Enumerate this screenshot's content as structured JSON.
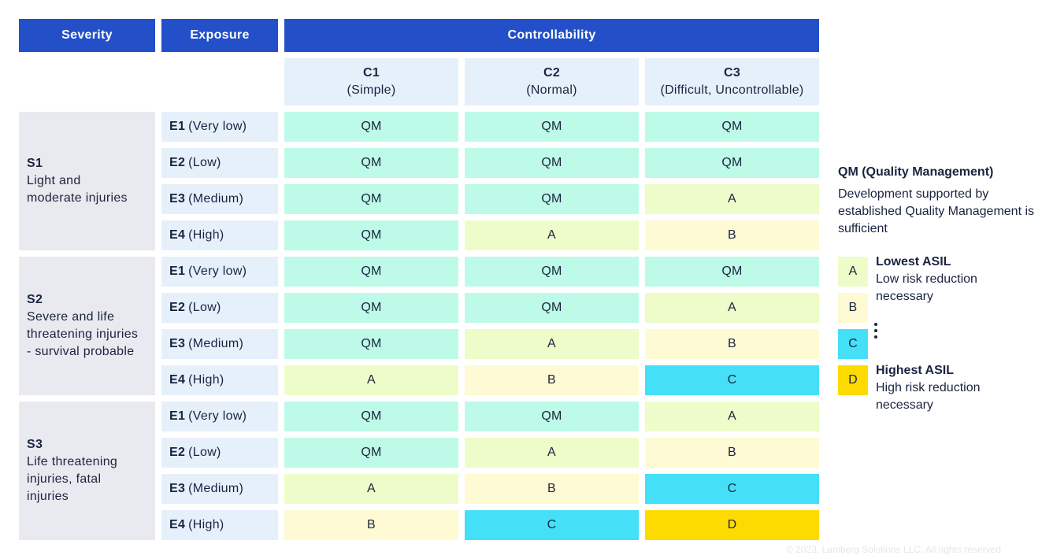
{
  "headers": {
    "severity": "Severity",
    "exposure": "Exposure",
    "controllability": "Controllability"
  },
  "controllability_levels": [
    {
      "code": "C1",
      "label": "(Simple)"
    },
    {
      "code": "C2",
      "label": "(Normal)"
    },
    {
      "code": "C3",
      "label": "(Difficult, Uncontrollable)"
    }
  ],
  "severity_groups": [
    {
      "code": "S1",
      "description": [
        "Light and",
        "moderate injuries"
      ],
      "rows": [
        {
          "exposure_code": "E1",
          "exposure_label": "(Very low)",
          "levels": [
            "QM",
            "QM",
            "QM"
          ]
        },
        {
          "exposure_code": "E2",
          "exposure_label": "(Low)",
          "levels": [
            "QM",
            "QM",
            "QM"
          ]
        },
        {
          "exposure_code": "E3",
          "exposure_label": "(Medium)",
          "levels": [
            "QM",
            "QM",
            "A"
          ]
        },
        {
          "exposure_code": "E4",
          "exposure_label": "(High)",
          "levels": [
            "QM",
            "A",
            "B"
          ]
        }
      ]
    },
    {
      "code": "S2",
      "description": [
        "Severe and life",
        "threatening injuries",
        "- survival probable"
      ],
      "rows": [
        {
          "exposure_code": "E1",
          "exposure_label": "(Very low)",
          "levels": [
            "QM",
            "QM",
            "QM"
          ]
        },
        {
          "exposure_code": "E2",
          "exposure_label": "(Low)",
          "levels": [
            "QM",
            "QM",
            "A"
          ]
        },
        {
          "exposure_code": "E3",
          "exposure_label": "(Medium)",
          "levels": [
            "QM",
            "A",
            "B"
          ]
        },
        {
          "exposure_code": "E4",
          "exposure_label": "(High)",
          "levels": [
            "A",
            "B",
            "C"
          ]
        }
      ]
    },
    {
      "code": "S3",
      "description": [
        "Life threatening",
        "injuries, fatal",
        "injuries"
      ],
      "rows": [
        {
          "exposure_code": "E1",
          "exposure_label": "(Very low)",
          "levels": [
            "QM",
            "QM",
            "A"
          ]
        },
        {
          "exposure_code": "E2",
          "exposure_label": "(Low)",
          "levels": [
            "QM",
            "A",
            "B"
          ]
        },
        {
          "exposure_code": "E3",
          "exposure_label": "(Medium)",
          "levels": [
            "A",
            "B",
            "C"
          ]
        },
        {
          "exposure_code": "E4",
          "exposure_label": "(High)",
          "levels": [
            "B",
            "C",
            "D"
          ]
        }
      ]
    }
  ],
  "legend": {
    "qm_title": "QM (Quality Management)",
    "qm_description": "Development supported by established Quality Management is sufficient",
    "swatches": [
      "A",
      "B",
      "C",
      "D"
    ],
    "lowest_title": "Lowest ASIL",
    "lowest_description": "Low risk reduction necessary",
    "highest_title": "Highest ASIL",
    "highest_description": "High risk reduction necessary"
  },
  "colors": {
    "header": "#2350c8",
    "QM": "#bdfbe8",
    "A": "#eefcc9",
    "B": "#fefad3",
    "C": "#44e0f8",
    "D": "#fedb00"
  },
  "copyright": "© 2023, Lamberg Solutions LLC. All rights reserved"
}
